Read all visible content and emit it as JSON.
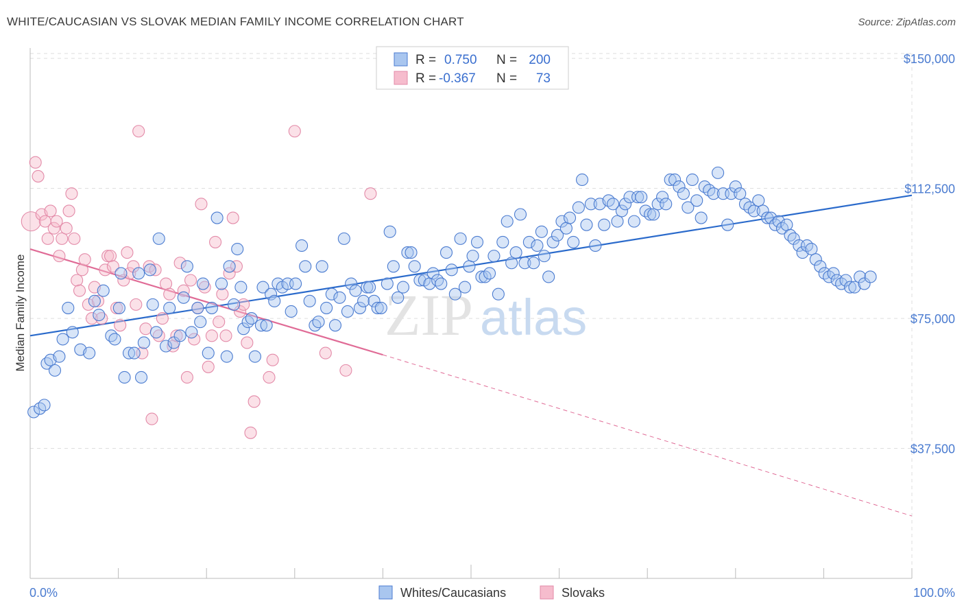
{
  "header": {
    "title": "WHITE/CAUCASIAN VS SLOVAK MEDIAN FAMILY INCOME CORRELATION CHART",
    "source": "Source: ZipAtlas.com"
  },
  "legend": {
    "rows": [
      {
        "r_label": "R =",
        "r_value": "0.750",
        "n_label": "N =",
        "n_value": "200",
        "color": "#4a7bd0"
      },
      {
        "r_label": "R =",
        "r_value": "-0.367",
        "n_label": "N =",
        "n_value": "73",
        "color": "#e06b96"
      }
    ]
  },
  "watermark": {
    "part1": "ZIP",
    "part2": "atlas"
  },
  "colors": {
    "blue_fill": "#a9c6ef",
    "blue_stroke": "#4a7bd0",
    "blue_line": "#2a6acb",
    "pink_fill": "#f6bccd",
    "pink_stroke": "#e38aa8",
    "pink_line": "#e06b96",
    "grid": "#dddddd",
    "axis_text": "#4a7bd0"
  },
  "chart_data": {
    "type": "scatter",
    "title": "WHITE/CAUCASIAN VS SLOVAK MEDIAN FAMILY INCOME CORRELATION CHART",
    "xlabel": "",
    "ylabel": "Median Family Income",
    "xlim": [
      0,
      100
    ],
    "ylim": [
      0,
      153000
    ],
    "x_tick_labels": [
      "0.0%",
      "100.0%"
    ],
    "y_ticks": [
      37500,
      75000,
      112500,
      150000
    ],
    "y_tick_labels": [
      "$37,500",
      "$75,000",
      "$112,500",
      "$150,000"
    ],
    "grid": true,
    "legend_position": "top-center",
    "series": [
      {
        "name": "Whites/Caucasians",
        "r": 0.75,
        "n": 200,
        "trend": {
          "x": [
            0,
            100
          ],
          "y": [
            70000,
            110500
          ]
        },
        "points": [
          [
            0.4,
            48000
          ],
          [
            1.1,
            49000
          ],
          [
            1.6,
            50000
          ],
          [
            1.9,
            62000
          ],
          [
            2.3,
            63000
          ],
          [
            2.8,
            60000
          ],
          [
            3.3,
            64000
          ],
          [
            3.7,
            69000
          ],
          [
            4.3,
            78000
          ],
          [
            4.8,
            71000
          ],
          [
            5.7,
            66000
          ],
          [
            6.7,
            65000
          ],
          [
            7.3,
            80000
          ],
          [
            7.8,
            76000
          ],
          [
            8.3,
            83000
          ],
          [
            9.2,
            70000
          ],
          [
            9.6,
            69000
          ],
          [
            10.1,
            78000
          ],
          [
            10.3,
            88000
          ],
          [
            10.7,
            58000
          ],
          [
            11.2,
            65000
          ],
          [
            11.8,
            65000
          ],
          [
            12.3,
            88000
          ],
          [
            12.6,
            58000
          ],
          [
            12.9,
            68000
          ],
          [
            13.6,
            89000
          ],
          [
            13.9,
            79000
          ],
          [
            14.3,
            71000
          ],
          [
            14.6,
            98000
          ],
          [
            15.4,
            67000
          ],
          [
            15.8,
            78000
          ],
          [
            16.3,
            68000
          ],
          [
            17.0,
            70000
          ],
          [
            17.4,
            81000
          ],
          [
            17.8,
            90000
          ],
          [
            18.3,
            71000
          ],
          [
            19.0,
            78000
          ],
          [
            19.3,
            74000
          ],
          [
            19.6,
            85000
          ],
          [
            20.2,
            65000
          ],
          [
            20.6,
            78000
          ],
          [
            21.2,
            104000
          ],
          [
            21.7,
            85000
          ],
          [
            22.3,
            64000
          ],
          [
            22.6,
            90000
          ],
          [
            23.1,
            79000
          ],
          [
            23.5,
            95000
          ],
          [
            23.9,
            84000
          ],
          [
            24.2,
            72000
          ],
          [
            24.7,
            74000
          ],
          [
            25.1,
            75000
          ],
          [
            25.5,
            64000
          ],
          [
            26.2,
            73000
          ],
          [
            26.4,
            84000
          ],
          [
            26.8,
            73000
          ],
          [
            27.3,
            82000
          ],
          [
            27.7,
            80000
          ],
          [
            28.1,
            85000
          ],
          [
            28.6,
            84000
          ],
          [
            29.2,
            85000
          ],
          [
            29.6,
            77000
          ],
          [
            30.1,
            85000
          ],
          [
            30.8,
            96000
          ],
          [
            31.2,
            90000
          ],
          [
            31.7,
            80000
          ],
          [
            32.3,
            73000
          ],
          [
            32.7,
            74000
          ],
          [
            33.1,
            90000
          ],
          [
            33.6,
            78000
          ],
          [
            34.2,
            82000
          ],
          [
            34.6,
            73000
          ],
          [
            35.1,
            81000
          ],
          [
            35.6,
            98000
          ],
          [
            36.0,
            77000
          ],
          [
            36.4,
            85000
          ],
          [
            36.9,
            83000
          ],
          [
            37.4,
            78000
          ],
          [
            37.8,
            80000
          ],
          [
            38.2,
            84000
          ],
          [
            38.5,
            84000
          ],
          [
            39.0,
            80000
          ],
          [
            39.4,
            78000
          ],
          [
            39.8,
            78000
          ],
          [
            40.5,
            85000
          ],
          [
            40.8,
            100000
          ],
          [
            41.2,
            90000
          ],
          [
            41.7,
            81000
          ],
          [
            42.3,
            84000
          ],
          [
            42.8,
            94000
          ],
          [
            43.2,
            94000
          ],
          [
            43.6,
            90000
          ],
          [
            44.2,
            86000
          ],
          [
            44.7,
            86000
          ],
          [
            45.3,
            85000
          ],
          [
            45.7,
            88000
          ],
          [
            46.2,
            86000
          ],
          [
            46.6,
            85000
          ],
          [
            47.2,
            94000
          ],
          [
            47.8,
            89000
          ],
          [
            48.2,
            82000
          ],
          [
            48.8,
            98000
          ],
          [
            49.3,
            84000
          ],
          [
            49.8,
            90000
          ],
          [
            50.2,
            93000
          ],
          [
            50.7,
            97000
          ],
          [
            51.2,
            87000
          ],
          [
            51.6,
            87000
          ],
          [
            52.1,
            88000
          ],
          [
            52.6,
            93000
          ],
          [
            53.1,
            82000
          ],
          [
            53.6,
            97000
          ],
          [
            54.1,
            103000
          ],
          [
            54.6,
            91000
          ],
          [
            55.1,
            94000
          ],
          [
            55.6,
            105000
          ],
          [
            56.1,
            91000
          ],
          [
            56.6,
            97000
          ],
          [
            57.1,
            91000
          ],
          [
            57.5,
            96000
          ],
          [
            58.0,
            100000
          ],
          [
            58.3,
            93000
          ],
          [
            58.8,
            87000
          ],
          [
            59.3,
            97000
          ],
          [
            59.8,
            99000
          ],
          [
            60.3,
            103000
          ],
          [
            60.8,
            101000
          ],
          [
            61.2,
            104000
          ],
          [
            61.6,
            97000
          ],
          [
            62.2,
            107000
          ],
          [
            62.6,
            115000
          ],
          [
            63.1,
            102000
          ],
          [
            63.6,
            108000
          ],
          [
            64.1,
            96000
          ],
          [
            64.6,
            108000
          ],
          [
            65.1,
            102000
          ],
          [
            65.6,
            109000
          ],
          [
            66.1,
            108000
          ],
          [
            66.6,
            103000
          ],
          [
            67.1,
            106000
          ],
          [
            67.5,
            108000
          ],
          [
            68.0,
            110000
          ],
          [
            68.5,
            103000
          ],
          [
            68.9,
            110000
          ],
          [
            69.3,
            110000
          ],
          [
            69.8,
            106000
          ],
          [
            70.3,
            105000
          ],
          [
            70.7,
            105000
          ],
          [
            71.2,
            108000
          ],
          [
            71.7,
            110000
          ],
          [
            72.1,
            108000
          ],
          [
            72.6,
            115000
          ],
          [
            73.1,
            115000
          ],
          [
            73.6,
            113000
          ],
          [
            74.1,
            111000
          ],
          [
            74.6,
            107000
          ],
          [
            75.1,
            115000
          ],
          [
            75.6,
            109000
          ],
          [
            76.1,
            104000
          ],
          [
            76.5,
            113000
          ],
          [
            77.0,
            112000
          ],
          [
            77.5,
            111000
          ],
          [
            78.0,
            117000
          ],
          [
            78.6,
            111000
          ],
          [
            79.1,
            102000
          ],
          [
            79.5,
            111000
          ],
          [
            80.0,
            113000
          ],
          [
            80.5,
            111000
          ],
          [
            81.1,
            108000
          ],
          [
            81.6,
            107000
          ],
          [
            82.1,
            106000
          ],
          [
            82.6,
            109000
          ],
          [
            83.1,
            106000
          ],
          [
            83.6,
            104000
          ],
          [
            84.0,
            104000
          ],
          [
            84.5,
            102000
          ],
          [
            84.9,
            103000
          ],
          [
            85.3,
            101000
          ],
          [
            85.8,
            102000
          ],
          [
            86.2,
            99000
          ],
          [
            86.6,
            98000
          ],
          [
            87.2,
            96000
          ],
          [
            87.6,
            94000
          ],
          [
            88.1,
            96000
          ],
          [
            88.6,
            95000
          ],
          [
            89.1,
            92000
          ],
          [
            89.6,
            90000
          ],
          [
            90.1,
            88000
          ],
          [
            90.6,
            87000
          ],
          [
            91.1,
            88000
          ],
          [
            91.5,
            86000
          ],
          [
            92.0,
            85000
          ],
          [
            92.5,
            86000
          ],
          [
            93.0,
            84000
          ],
          [
            93.5,
            84000
          ],
          [
            94.1,
            87000
          ],
          [
            94.6,
            85000
          ],
          [
            95.3,
            87000
          ]
        ]
      },
      {
        "name": "Slovaks",
        "r": -0.367,
        "n": 73,
        "trend": {
          "x": [
            0,
            40
          ],
          "y": [
            95000,
            64500
          ],
          "dashed_to": [
            100,
            18000
          ]
        },
        "points": [
          [
            0.1,
            103000
          ],
          [
            0.6,
            120000
          ],
          [
            0.9,
            116000
          ],
          [
            1.3,
            105000
          ],
          [
            1.7,
            103000
          ],
          [
            2.0,
            98000
          ],
          [
            2.3,
            106000
          ],
          [
            2.7,
            101000
          ],
          [
            3.0,
            103000
          ],
          [
            3.3,
            93000
          ],
          [
            3.6,
            98000
          ],
          [
            4.1,
            101000
          ],
          [
            4.4,
            106000
          ],
          [
            4.7,
            111000
          ],
          [
            5.0,
            98000
          ],
          [
            5.3,
            86000
          ],
          [
            5.6,
            83000
          ],
          [
            5.9,
            89000
          ],
          [
            6.2,
            92000
          ],
          [
            6.6,
            79000
          ],
          [
            7.0,
            75000
          ],
          [
            7.3,
            84000
          ],
          [
            7.7,
            80000
          ],
          [
            8.1,
            75000
          ],
          [
            8.5,
            89000
          ],
          [
            8.8,
            93000
          ],
          [
            9.1,
            93000
          ],
          [
            9.4,
            90000
          ],
          [
            9.8,
            78000
          ],
          [
            10.2,
            73000
          ],
          [
            10.6,
            86000
          ],
          [
            11.0,
            94000
          ],
          [
            11.3,
            88000
          ],
          [
            11.7,
            90000
          ],
          [
            12.0,
            79000
          ],
          [
            12.3,
            129000
          ],
          [
            12.7,
            65000
          ],
          [
            13.1,
            72000
          ],
          [
            13.5,
            90000
          ],
          [
            13.8,
            46000
          ],
          [
            14.2,
            89000
          ],
          [
            14.6,
            70000
          ],
          [
            15.0,
            75000
          ],
          [
            15.4,
            85000
          ],
          [
            15.8,
            82000
          ],
          [
            16.2,
            67000
          ],
          [
            16.6,
            70000
          ],
          [
            17.0,
            91000
          ],
          [
            17.4,
            83000
          ],
          [
            17.8,
            58000
          ],
          [
            18.2,
            86000
          ],
          [
            18.6,
            69000
          ],
          [
            19.0,
            78000
          ],
          [
            19.4,
            108000
          ],
          [
            19.8,
            84000
          ],
          [
            20.2,
            61000
          ],
          [
            20.6,
            70000
          ],
          [
            21.0,
            97000
          ],
          [
            21.4,
            74000
          ],
          [
            21.8,
            82000
          ],
          [
            22.2,
            70000
          ],
          [
            22.6,
            88000
          ],
          [
            23.0,
            104000
          ],
          [
            23.4,
            90000
          ],
          [
            23.8,
            77000
          ],
          [
            24.2,
            79000
          ],
          [
            24.6,
            68000
          ],
          [
            25.0,
            42000
          ],
          [
            25.4,
            51000
          ],
          [
            27.1,
            58000
          ],
          [
            27.5,
            63000
          ],
          [
            30.0,
            129000
          ],
          [
            33.5,
            65000
          ],
          [
            35.8,
            60000
          ],
          [
            38.6,
            111000
          ]
        ]
      }
    ]
  },
  "bottom_legend": {
    "items": [
      {
        "label": "Whites/Caucasians",
        "color": "#a9c6ef",
        "stroke": "#4a7bd0"
      },
      {
        "label": "Slovaks",
        "color": "#f6bccd",
        "stroke": "#e38aa8"
      }
    ]
  }
}
